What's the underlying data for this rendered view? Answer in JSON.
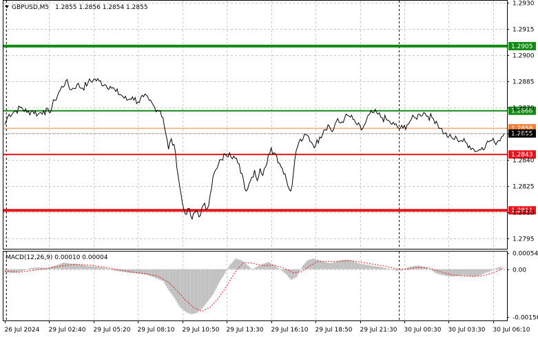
{
  "header": {
    "symbol": "GBPUSD,M5",
    "ohlc": "1.2855 1.2856 1.2854 1.2855"
  },
  "macd_label": "MACD(12,26,9) 0.00010 0.00004",
  "colors": {
    "background": "#ffffff",
    "price_line": "#000000",
    "grid": "#c8c8c8",
    "green_level": "#138a13",
    "red_level": "#e8141a",
    "orange_level": "#f0813c",
    "current_price": "#000000",
    "histogram": "#b4b4b4",
    "signal": "#e8141a"
  },
  "chart_data": [
    {
      "type": "line",
      "title": "",
      "series": [
        {
          "name": "",
          "values": [
            [
              0,
              1.286
            ],
            [
              3,
              1.2866
            ],
            [
              8,
              1.2868
            ],
            [
              12,
              1.287
            ],
            [
              16,
              1.2867
            ],
            [
              20,
              1.2868
            ],
            [
              24,
              1.2866
            ],
            [
              28,
              1.2868
            ],
            [
              32,
              1.2867
            ],
            [
              36,
              1.2874
            ],
            [
              40,
              1.288
            ],
            [
              44,
              1.2885
            ],
            [
              48,
              1.288
            ],
            [
              52,
              1.2883
            ],
            [
              56,
              1.2881
            ],
            [
              60,
              1.2884
            ],
            [
              64,
              1.2886
            ],
            [
              68,
              1.2885
            ],
            [
              72,
              1.2883
            ],
            [
              76,
              1.2882
            ],
            [
              80,
              1.2879
            ],
            [
              84,
              1.2877
            ],
            [
              88,
              1.2874
            ],
            [
              92,
              1.2876
            ],
            [
              96,
              1.2873
            ],
            [
              100,
              1.2876
            ],
            [
              104,
              1.2874
            ],
            [
              108,
              1.287
            ],
            [
              112,
              1.2868
            ],
            [
              114,
              1.2864
            ],
            [
              116,
              1.2855
            ],
            [
              118,
              1.2846
            ],
            [
              120,
              1.2852
            ],
            [
              123,
              1.2844
            ],
            [
              126,
              1.2825
            ],
            [
              128,
              1.2815
            ],
            [
              130,
              1.2809
            ],
            [
              132,
              1.2812
            ],
            [
              135,
              1.2806
            ],
            [
              138,
              1.2811
            ],
            [
              141,
              1.2808
            ],
            [
              143,
              1.2814
            ],
            [
              146,
              1.2812
            ],
            [
              148,
              1.282
            ],
            [
              150,
              1.283
            ],
            [
              153,
              1.2835
            ],
            [
              156,
              1.284
            ],
            [
              159,
              1.2843
            ],
            [
              162,
              1.2844
            ],
            [
              165,
              1.2842
            ],
            [
              168,
              1.2838
            ],
            [
              171,
              1.2832
            ],
            [
              174,
              1.2822
            ],
            [
              176,
              1.2826
            ],
            [
              178,
              1.283
            ],
            [
              180,
              1.2834
            ],
            [
              182,
              1.2828
            ],
            [
              184,
              1.2835
            ],
            [
              186,
              1.2831
            ],
            [
              188,
              1.2836
            ],
            [
              190,
              1.2843
            ],
            [
              192,
              1.2847
            ],
            [
              194,
              1.2844
            ],
            [
              196,
              1.2842
            ],
            [
              198,
              1.2838
            ],
            [
              200,
              1.2835
            ],
            [
              202,
              1.2832
            ],
            [
              204,
              1.2825
            ],
            [
              206,
              1.2822
            ],
            [
              208,
              1.2832
            ],
            [
              210,
              1.2845
            ],
            [
              212,
              1.285
            ],
            [
              215,
              1.2852
            ],
            [
              218,
              1.2854
            ],
            [
              221,
              1.285
            ],
            [
              224,
              1.2848
            ],
            [
              227,
              1.2853
            ],
            [
              230,
              1.2857
            ],
            [
              233,
              1.286
            ],
            [
              236,
              1.2856
            ],
            [
              239,
              1.2862
            ],
            [
              242,
              1.2861
            ],
            [
              245,
              1.2864
            ],
            [
              248,
              1.2865
            ],
            [
              251,
              1.2863
            ],
            [
              254,
              1.286
            ],
            [
              257,
              1.2857
            ],
            [
              260,
              1.2861
            ],
            [
              263,
              1.2866
            ],
            [
              266,
              1.2867
            ],
            [
              269,
              1.2866
            ],
            [
              272,
              1.2864
            ],
            [
              275,
              1.2863
            ],
            [
              278,
              1.2861
            ],
            [
              281,
              1.286
            ],
            [
              284,
              1.2858
            ],
            [
              287,
              1.2858
            ],
            [
              290,
              1.286
            ],
            [
              293,
              1.2863
            ],
            [
              296,
              1.2864
            ],
            [
              299,
              1.2866
            ],
            [
              302,
              1.2867
            ],
            [
              305,
              1.2865
            ],
            [
              308,
              1.2864
            ],
            [
              311,
              1.2862
            ],
            [
              314,
              1.2858
            ],
            [
              317,
              1.2855
            ],
            [
              320,
              1.2853
            ],
            [
              323,
              1.2852
            ],
            [
              326,
              1.2852
            ],
            [
              329,
              1.2851
            ],
            [
              332,
              1.285
            ],
            [
              335,
              1.2848
            ],
            [
              338,
              1.2846
            ],
            [
              341,
              1.2845
            ],
            [
              344,
              1.2847
            ],
            [
              347,
              1.2849
            ],
            [
              350,
              1.2851
            ],
            [
              353,
              1.285
            ],
            [
              356,
              1.2851
            ],
            [
              358,
              1.2853
            ],
            [
              360,
              1.2855
            ]
          ]
        }
      ],
      "y_ticks": [
        "1.2930",
        "1.2915",
        "1.2900",
        "1.2885",
        "1.2870",
        "1.2855",
        "1.2840",
        "1.2825",
        "1.2810",
        "1.2795"
      ],
      "ylim": [
        1.2789,
        1.2931
      ],
      "x_ticks": [
        {
          "x": 0,
          "label": "26 Jul 2024"
        },
        {
          "x": 32,
          "label": "29 Jul 02:40"
        },
        {
          "x": 64,
          "label": "29 Jul 05:20"
        },
        {
          "x": 96,
          "label": "29 Jul 08:10"
        },
        {
          "x": 128,
          "label": "29 Jul 10:50"
        },
        {
          "x": 160,
          "label": "29 Jul 13:30"
        },
        {
          "x": 192,
          "label": "29 Jul 16:10"
        },
        {
          "x": 224,
          "label": "29 Jul 18:50"
        },
        {
          "x": 256,
          "label": "29 Jul 21:30"
        },
        {
          "x": 288,
          "label": "30 Jul 00:30"
        },
        {
          "x": 320,
          "label": "30 Jul 03:30"
        },
        {
          "x": 352,
          "label": "30 Jul 06:10"
        }
      ],
      "xlim": [
        -1,
        362
      ],
      "day_separators": [
        1,
        284
      ],
      "grid": true,
      "levels": [
        {
          "value": 1.2905,
          "label": "1.2905",
          "color": "#138a13",
          "width": 4
        },
        {
          "value": 1.2868,
          "label": "1.2868",
          "color": "#138a13",
          "width": 2
        },
        {
          "value": 1.2858,
          "label": "1.2858",
          "color": "#f0813c",
          "width": 1
        },
        {
          "value": 1.2843,
          "label": "1.2843",
          "color": "#e8141a",
          "width": 2
        },
        {
          "value": 1.2811,
          "label": "1.2811",
          "color": "#e8141a",
          "width": 4
        }
      ],
      "current_price": {
        "value": 1.2855,
        "label": "1.2855"
      }
    },
    {
      "type": "bar",
      "title": "",
      "y_ticks": [
        "0.00054",
        "0.00",
        "-0.00156"
      ],
      "ylim": [
        -0.00168,
        0.00058
      ],
      "histogram": [
        [
          0,
          -0.0001
        ],
        [
          6,
          -0.00012
        ],
        [
          12,
          -6e-05
        ],
        [
          18,
          4e-05
        ],
        [
          24,
          6e-05
        ],
        [
          30,
          4e-05
        ],
        [
          36,
          0.00012
        ],
        [
          42,
          0.00022
        ],
        [
          48,
          0.00018
        ],
        [
          54,
          0.00016
        ],
        [
          60,
          0.0001
        ],
        [
          66,
          8e-05
        ],
        [
          72,
          4e-05
        ],
        [
          78,
          -4e-05
        ],
        [
          84,
          -8e-05
        ],
        [
          90,
          -0.00012
        ],
        [
          96,
          -0.00014
        ],
        [
          102,
          -0.00018
        ],
        [
          108,
          -0.00028
        ],
        [
          114,
          -0.0004
        ],
        [
          118,
          -0.0007
        ],
        [
          122,
          -0.00095
        ],
        [
          126,
          -0.00125
        ],
        [
          130,
          -0.0014
        ],
        [
          134,
          -0.00148
        ],
        [
          138,
          -0.00143
        ],
        [
          142,
          -0.00128
        ],
        [
          146,
          -0.00105
        ],
        [
          150,
          -0.0008
        ],
        [
          154,
          -0.00045
        ],
        [
          158,
          -0.00015
        ],
        [
          162,
          0.00015
        ],
        [
          166,
          0.00035
        ],
        [
          170,
          0.0003
        ],
        [
          174,
          0.00015
        ],
        [
          178,
          0.0
        ],
        [
          182,
          0.0001
        ],
        [
          186,
          0.00018
        ],
        [
          190,
          0.00024
        ],
        [
          194,
          0.00012
        ],
        [
          198,
          0.0
        ],
        [
          202,
          -0.00015
        ],
        [
          206,
          -0.00035
        ],
        [
          210,
          -0.00025
        ],
        [
          214,
          0.0001
        ],
        [
          218,
          0.0003
        ],
        [
          222,
          0.00035
        ],
        [
          226,
          0.0003
        ],
        [
          230,
          0.00024
        ],
        [
          234,
          0.0002
        ],
        [
          238,
          0.00024
        ],
        [
          242,
          0.0003
        ],
        [
          246,
          0.00032
        ],
        [
          250,
          0.00028
        ],
        [
          254,
          0.0002
        ],
        [
          258,
          0.00016
        ],
        [
          262,
          0.00014
        ],
        [
          266,
          0.0001
        ],
        [
          270,
          8e-05
        ],
        [
          274,
          4e-05
        ],
        [
          278,
          0.0
        ],
        [
          282,
          -5e-05
        ],
        [
          286,
          -4e-05
        ],
        [
          290,
          6e-05
        ],
        [
          294,
          0.0001
        ],
        [
          298,
          0.00012
        ],
        [
          302,
          8e-05
        ],
        [
          306,
          0.0
        ],
        [
          310,
          -0.00012
        ],
        [
          314,
          -0.00018
        ],
        [
          318,
          -0.00022
        ],
        [
          322,
          -0.00024
        ],
        [
          326,
          -0.00022
        ],
        [
          330,
          -0.0002
        ],
        [
          334,
          -0.00022
        ],
        [
          338,
          -0.00024
        ],
        [
          342,
          -0.0002
        ],
        [
          346,
          -0.00012
        ],
        [
          350,
          -6e-05
        ],
        [
          354,
          4e-05
        ],
        [
          358,
          0.0001
        ]
      ],
      "signal": [
        [
          0,
          -6e-05
        ],
        [
          10,
          -0.0001
        ],
        [
          20,
          -4e-05
        ],
        [
          30,
          2e-05
        ],
        [
          40,
          0.0001
        ],
        [
          50,
          0.00016
        ],
        [
          60,
          0.00014
        ],
        [
          70,
          8e-05
        ],
        [
          80,
          0.0
        ],
        [
          90,
          -8e-05
        ],
        [
          100,
          -0.00014
        ],
        [
          110,
          -0.00022
        ],
        [
          118,
          -0.00042
        ],
        [
          124,
          -0.0007
        ],
        [
          130,
          -0.001
        ],
        [
          136,
          -0.00125
        ],
        [
          142,
          -0.00138
        ],
        [
          148,
          -0.00125
        ],
        [
          154,
          -0.00095
        ],
        [
          160,
          -0.00055
        ],
        [
          166,
          -0.0001
        ],
        [
          172,
          0.00022
        ],
        [
          178,
          0.0002
        ],
        [
          186,
          0.00012
        ],
        [
          194,
          0.00014
        ],
        [
          202,
          2e-05
        ],
        [
          208,
          -0.00012
        ],
        [
          214,
          -8e-05
        ],
        [
          220,
          0.00012
        ],
        [
          226,
          0.00026
        ],
        [
          234,
          0.00026
        ],
        [
          242,
          0.00026
        ],
        [
          250,
          0.00028
        ],
        [
          258,
          0.00022
        ],
        [
          266,
          0.00016
        ],
        [
          274,
          0.0001
        ],
        [
          282,
          2e-05
        ],
        [
          290,
          0.0
        ],
        [
          298,
          6e-05
        ],
        [
          306,
          4e-05
        ],
        [
          314,
          -8e-05
        ],
        [
          322,
          -0.00018
        ],
        [
          330,
          -0.00022
        ],
        [
          338,
          -0.00024
        ],
        [
          346,
          -0.0002
        ],
        [
          354,
          -8e-05
        ],
        [
          360,
          4e-05
        ]
      ]
    }
  ]
}
